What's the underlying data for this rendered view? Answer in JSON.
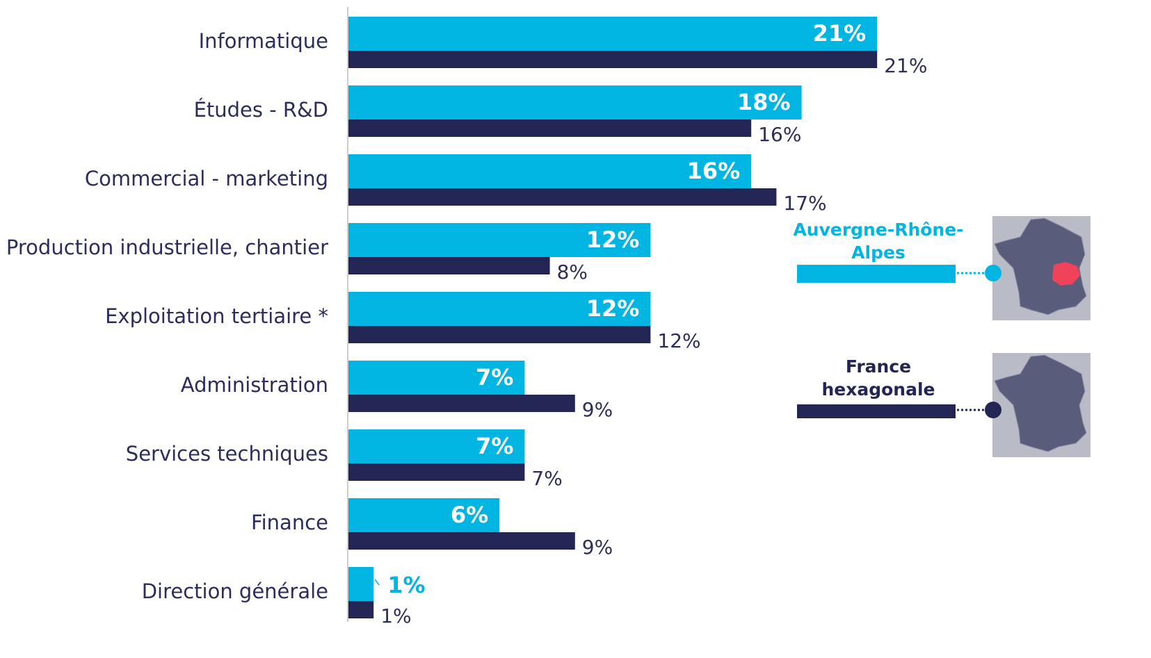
{
  "chart_data": {
    "type": "bar",
    "orientation": "horizontal",
    "categories": [
      "Informatique",
      "Études - R&D",
      "Commercial - marketing",
      "Production industrielle, chantier",
      "Exploitation tertiaire *",
      "Administration",
      "Services techniques",
      "Finance",
      "Direction générale"
    ],
    "series": [
      {
        "name": "Auvergne-Rhône-Alpes",
        "color": "#00b5e2",
        "values": [
          21,
          18,
          16,
          12,
          12,
          7,
          7,
          6,
          1
        ],
        "value_labels": [
          "21%",
          "18%",
          "16%",
          "12%",
          "12%",
          "7%",
          "7%",
          "6%",
          "1%"
        ]
      },
      {
        "name": "France hexagonale",
        "color": "#232654",
        "values": [
          21,
          16,
          17,
          8,
          12,
          9,
          7,
          9,
          1
        ],
        "value_labels": [
          "21%",
          "16%",
          "17%",
          "8%",
          "12%",
          "9%",
          "7%",
          "9%",
          "1%"
        ]
      }
    ],
    "xlim": [
      0,
      30
    ]
  }
}
